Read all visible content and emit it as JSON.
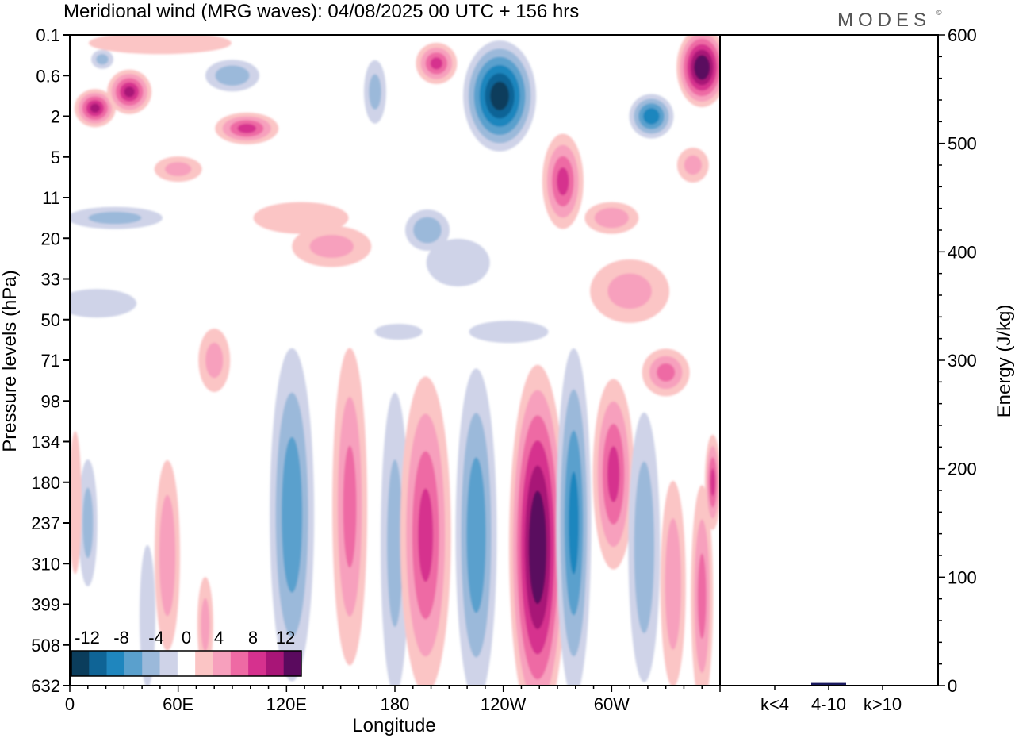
{
  "chart_data": {
    "type": "heatmap",
    "title": "Meridional wind (MRG waves):  04/08/2025  00 UTC  + 156 hrs",
    "brand": "MODES",
    "brand_mark": "©",
    "xlabel": "Longitude",
    "ylabel": "Pressure levels (hPa)",
    "x_tick_labels": [
      "0",
      "60E",
      "120E",
      "180",
      "120W",
      "60W"
    ],
    "x_tick_degrees": [
      0,
      60,
      120,
      180,
      240,
      300
    ],
    "x_range_degrees": [
      0,
      360
    ],
    "y_tick_labels": [
      "0.1",
      "0.6",
      "2",
      "5",
      "11",
      "20",
      "33",
      "50",
      "71",
      "98",
      "134",
      "180",
      "237",
      "310",
      "399",
      "508",
      "632"
    ],
    "colorbar": {
      "tick_labels": [
        "-12",
        "-8",
        "-4",
        "0",
        "4",
        "8",
        "12"
      ],
      "levels": [
        -14,
        -12,
        -10,
        -8,
        -6,
        -4,
        -2,
        2,
        4,
        6,
        8,
        10,
        12,
        14
      ],
      "colors": [
        "#0b3d5c",
        "#0f6496",
        "#1f86be",
        "#5aa0cd",
        "#9bb9da",
        "#cfd3e8",
        "#ffffff",
        "#fbc5c5",
        "#f7a0bd",
        "#ee6aa4",
        "#d6318e",
        "#a81577",
        "#5a0a5e"
      ]
    },
    "field_features": [
      {
        "lon": 123,
        "level_index": 11.8,
        "value": -7
      },
      {
        "lon": 155,
        "level_index": 11.6,
        "value": 6
      },
      {
        "lon": 197,
        "level_index": 12.3,
        "value": 8
      },
      {
        "lon": 225,
        "level_index": 12.3,
        "value": -7
      },
      {
        "lon": 259,
        "level_index": 12.6,
        "value": 14
      },
      {
        "lon": 279,
        "level_index": 12.0,
        "value": -8
      },
      {
        "lon": 301,
        "level_index": 10.8,
        "value": 8
      },
      {
        "lon": 238,
        "level_index": 1.5,
        "value": -13
      },
      {
        "lon": 350,
        "level_index": 0.8,
        "value": 14
      },
      {
        "lon": 14,
        "level_index": 1.8,
        "value": 10
      },
      {
        "lon": 33,
        "level_index": 1.4,
        "value": 10
      },
      {
        "lon": 98,
        "level_index": 2.3,
        "value": 8
      },
      {
        "lon": 322,
        "level_index": 2.0,
        "value": -9
      },
      {
        "lon": 203,
        "level_index": 0.7,
        "value": 8
      }
    ],
    "energy_axis": {
      "label": "Energy (J/kg)",
      "tick_labels": [
        "0",
        "100",
        "200",
        "300",
        "400",
        "500",
        "600"
      ],
      "range": [
        0,
        600
      ]
    },
    "energy_bars": {
      "categories": [
        "k<4",
        "4-10",
        "k>10"
      ],
      "values": [
        0.5,
        2.5,
        0.3
      ],
      "color": "#1a1a5e"
    }
  }
}
